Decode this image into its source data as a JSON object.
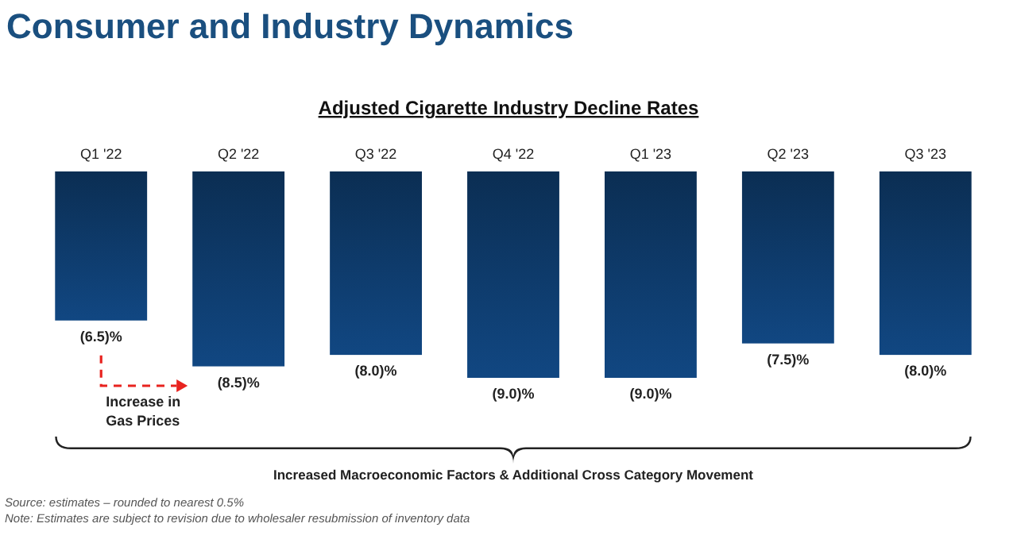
{
  "chart_data": {
    "type": "bar",
    "title": "Consumer and Industry Dynamics",
    "subtitle": "Adjusted Cigarette Industry Decline Rates",
    "categories": [
      "Q1 '22",
      "Q2 '22",
      "Q3 '22",
      "Q4 '22",
      "Q1 '23",
      "Q2 '23",
      "Q3 '23"
    ],
    "values": [
      -6.5,
      -8.5,
      -8.0,
      -9.0,
      -9.0,
      -7.5,
      -8.0
    ],
    "value_labels": [
      "(6.5)%",
      "(8.5)%",
      "(8.0)%",
      "(9.0)%",
      "(9.0)%",
      "(7.5)%",
      "(8.0)%"
    ],
    "color": "#0f3f73",
    "annotations": [
      "Increase in Gas Prices",
      "Increased Macroeconomic Factors & Additional Cross Category Movement",
      "Source: estimates – rounded to nearest 0.5%",
      "Note: Estimates are subject to revision due to wholesaler resubmission of inventory data"
    ]
  }
}
